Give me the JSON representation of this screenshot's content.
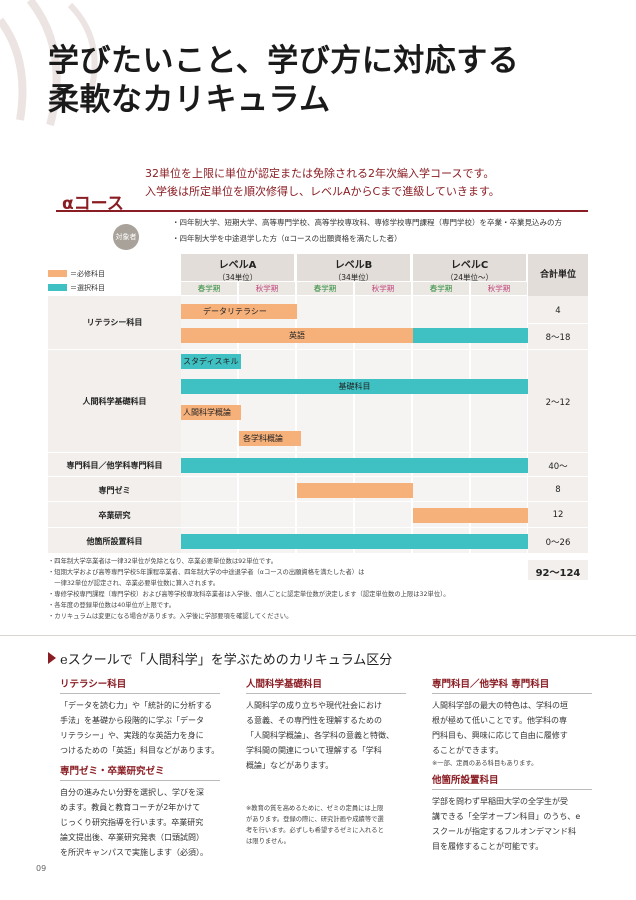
{
  "page": {
    "title_line1": "学びたいこと、学び方に対応する",
    "title_line2": "柔軟なカリキュラム",
    "page_number": "09"
  },
  "course": {
    "name": "αコース",
    "lead_line1": "32単位を上限に単位が認定または免除される2年次編入学コースです。",
    "lead_line2": "入学後は所定単位を順次修得し、レベルAからCまで進級していきます。",
    "target_badge": "対象者",
    "targets": [
      "・四年制大学、短期大学、高等専門学校、高等学校専攻科、専修学校専門課程（専門学校）を卒業・卒業見込みの方",
      "・四年制大学を中途退学した方（αコースの出願資格を満たした者）"
    ]
  },
  "legend": {
    "required": "＝必修科目",
    "optional": "＝選択科目",
    "colors": {
      "required": "#f6b07a",
      "optional": "#3fc1c3"
    }
  },
  "table": {
    "levels": [
      {
        "name": "レベルA",
        "range": "（34単位）"
      },
      {
        "name": "レベルB",
        "range": "（34単位）"
      },
      {
        "name": "レベルC",
        "range": "（24単位〜）"
      }
    ],
    "terms": [
      "春学期",
      "秋学期",
      "春学期",
      "秋学期",
      "春学期",
      "秋学期"
    ],
    "total_header": "合計単位",
    "rows": {
      "literacy": {
        "label": "リテラシー科目",
        "bar1": "データリテラシー",
        "bar2": "英語",
        "total1": "4",
        "total2": "8〜18"
      },
      "human_basic": {
        "label": "人間科学基礎科目",
        "bar1": "スタディスキル",
        "bar2": "基礎科目",
        "bar3": "人間科学概論",
        "bar4": "各学科概論",
        "total": "2〜12"
      },
      "specialized": {
        "label": "専門科目／他学科専門科目",
        "total": "40〜"
      },
      "seminar": {
        "label": "専門ゼミ",
        "total": "8"
      },
      "thesis": {
        "label": "卒業研究",
        "total": "12"
      },
      "other": {
        "label": "他箇所設置科目",
        "total": "0〜26"
      }
    },
    "grand_total": "92〜124"
  },
  "notes": [
    "・四年制大学卒業者は一律32単位が免除となり、卒業必要単位数は92単位です。",
    "・短期大学および高等専門学校5年課程卒業者、四年制大学の中途退学者（αコースの出願資格を満たした者）は",
    "　一律32単位が認定され、卒業必要単位数に算入されます。",
    "・専修学校専門課程（専門学校）および高等学校専攻科卒業者は入学後、個人ごとに認定単位数が決定します（認定単位数の上限は32単位）。",
    "・各年度の登録単位数は40単位が上限です。",
    "・カリキュラムは変更になる場合があります。入学後に学部要項を確認してください。"
  ],
  "section": {
    "title": "eスクールで「人間科学」を学ぶためのカリキュラム区分",
    "blocks": {
      "literacy": {
        "heading": "リテラシー科目",
        "body": [
          "「データを読む力」や「統計的に分析する",
          "手法」を基礎から段階的に学ぶ「データ",
          "リテラシー」や、実践的な英語力を身に",
          "つけるための「英語」科目などがあります。"
        ]
      },
      "seminar": {
        "heading": "専門ゼミ・卒業研究ゼミ",
        "body": [
          "自分の進みたい分野を選択し、学びを深",
          "めます。教員と教育コーチが2年かけて",
          "じっくり研究指導を行います。卒業研究",
          "論文提出後、卒業研究発表（口頭試問）",
          "を所沢キャンパスで実施します（必須）。"
        ]
      },
      "human": {
        "heading": "人間科学基礎科目",
        "body": [
          "人間科学の成り立ちや現代社会におけ",
          "る意義、その専門性を理解するための",
          "「人間科学概論」、各学科の意義と特徴、",
          "学科間の関連について理解する「学科",
          "概論」などがあります。"
        ],
        "note": [
          "※教育の質を高めるために、ゼミの定員には上限",
          "があります。登録の際に、研究計画や成績等で選",
          "考を行います。必ずしも希望するゼミに入れると",
          "は限りません。"
        ]
      },
      "specialized": {
        "heading": "専門科目／他学科 専門科目",
        "body": [
          "人間科学部の最大の特色は、学科の垣",
          "根が極めて低いことです。他学科の専",
          "門科目も、興味に応じて自由に履修す",
          "ることができます。"
        ],
        "note": "※一部、定員のある科目もあります。"
      },
      "other": {
        "heading": "他箇所設置科目",
        "body": [
          "学部を問わず早稲田大学の全学生が受",
          "講できる「全学オープン科目」のうち、e",
          "スクールが指定するフルオンデマンド科",
          "目を履修することが可能です。"
        ]
      }
    }
  }
}
